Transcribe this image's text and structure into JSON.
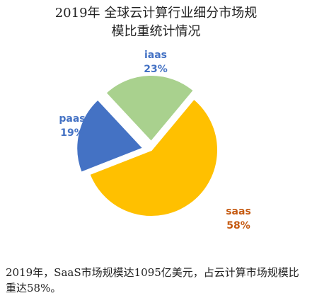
{
  "chart_data": {
    "type": "pie",
    "title_lines": [
      "2019年 全球云计算行业细分市场规",
      "模比重统计情况"
    ],
    "categories": [
      "iaas",
      "saas",
      "paas"
    ],
    "values": [
      23,
      58,
      19
    ],
    "value_labels": [
      "23%",
      "58%",
      "19%"
    ],
    "colors": [
      "#a9d18e",
      "#ffc000",
      "#4472c4"
    ],
    "label_colors": [
      "#4472c4",
      "#c55a11",
      "#4472c4"
    ],
    "exploded": [
      true,
      false,
      true
    ],
    "legend": "none"
  },
  "caption": "2019年，SaaS市场规模达1095亿美元，占云计算市场规模比重达58%。"
}
